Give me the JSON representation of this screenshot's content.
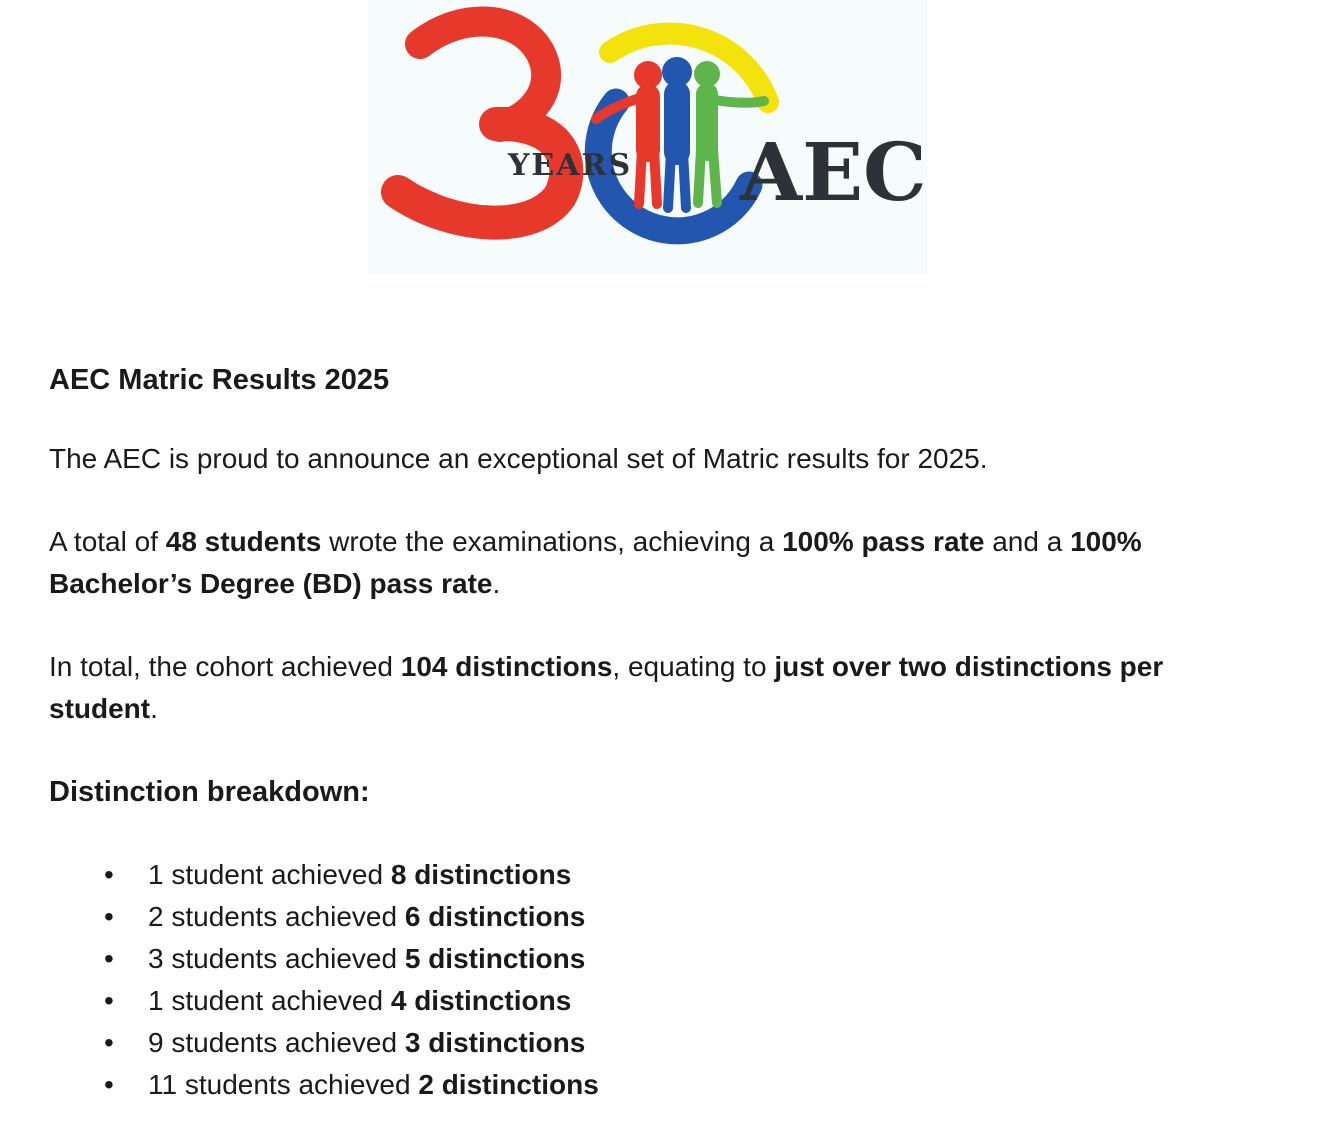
{
  "logo": {
    "years_label": "YEARS",
    "aec_label": "AEC",
    "background": "#f6fbfb",
    "colors": {
      "red": "#e6392c",
      "blue": "#2356ae",
      "green": "#5eb54c",
      "yellow": "#f4e20c",
      "dark": "#2e3237"
    }
  },
  "document": {
    "title": "AEC Matric Results 2025",
    "paragraphs": [
      {
        "segments": [
          {
            "text": "The AEC is proud to announce an exceptional set of Matric results for 2025.",
            "bold": false
          }
        ]
      },
      {
        "segments": [
          {
            "text": "A total of ",
            "bold": false
          },
          {
            "text": "48 students",
            "bold": true
          },
          {
            "text": " wrote the examinations, achieving a ",
            "bold": false
          },
          {
            "text": "100% pass rate",
            "bold": true
          },
          {
            "text": " and a ",
            "bold": false
          },
          {
            "text": "100% Bachelor’s Degree (BD) pass rate",
            "bold": true
          },
          {
            "text": ".",
            "bold": false
          }
        ]
      },
      {
        "segments": [
          {
            "text": "In total, the cohort achieved ",
            "bold": false
          },
          {
            "text": "104 distinctions",
            "bold": true
          },
          {
            "text": ", equating to ",
            "bold": false
          },
          {
            "text": "just over two distinctions per student",
            "bold": true
          },
          {
            "text": ".",
            "bold": false
          }
        ]
      }
    ],
    "breakdown_heading": "Distinction breakdown:",
    "bullets": [
      {
        "segments": [
          {
            "text": "1 student achieved ",
            "bold": false
          },
          {
            "text": "8 distinctions",
            "bold": true
          }
        ]
      },
      {
        "segments": [
          {
            "text": "2 students achieved ",
            "bold": false
          },
          {
            "text": "6 distinctions",
            "bold": true
          }
        ]
      },
      {
        "segments": [
          {
            "text": "3 students achieved ",
            "bold": false
          },
          {
            "text": "5 distinctions",
            "bold": true
          }
        ]
      },
      {
        "segments": [
          {
            "text": "1 student achieved ",
            "bold": false
          },
          {
            "text": "4 distinctions",
            "bold": true
          }
        ]
      },
      {
        "segments": [
          {
            "text": "9 students achieved ",
            "bold": false
          },
          {
            "text": "3 distinctions",
            "bold": true
          }
        ]
      },
      {
        "segments": [
          {
            "text": "11 students achieved ",
            "bold": false
          },
          {
            "text": "2 distinctions",
            "bold": true
          }
        ]
      }
    ]
  }
}
